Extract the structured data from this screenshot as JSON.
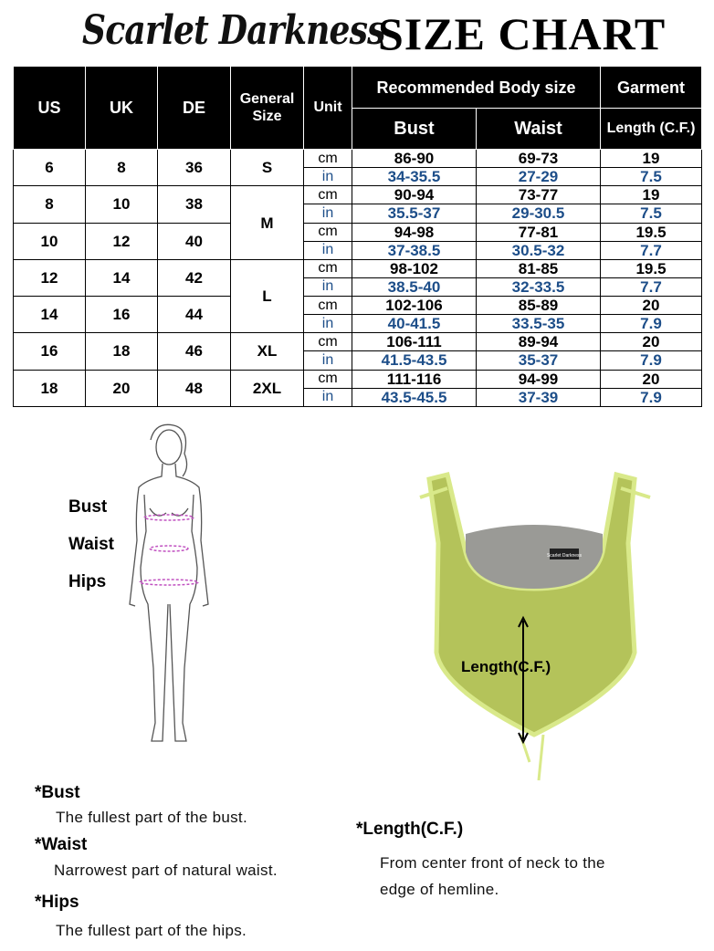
{
  "brand": "Scarlet Darkness",
  "title": "SIZE CHART",
  "table": {
    "headers": {
      "us": "US",
      "uk": "UK",
      "de": "DE",
      "general_size": "General Size",
      "unit": "Unit",
      "recommended": "Recommended Body size",
      "garment": "Garment",
      "bust": "Bust",
      "waist": "Waist",
      "length": "Length (C.F.)"
    },
    "size_groups": [
      {
        "label": "S",
        "rows": 1
      },
      {
        "label": "M",
        "rows": 2
      },
      {
        "label": "L",
        "rows": 2
      },
      {
        "label": "XL",
        "rows": 1
      },
      {
        "label": "2XL",
        "rows": 1
      }
    ],
    "rows": [
      {
        "us": "6",
        "uk": "8",
        "de": "36",
        "cm": {
          "unit": "cm",
          "bust": "86-90",
          "waist": "69-73",
          "length": "19"
        },
        "in": {
          "unit": "in",
          "bust": "34-35.5",
          "waist": "27-29",
          "length": "7.5"
        }
      },
      {
        "us": "8",
        "uk": "10",
        "de": "38",
        "cm": {
          "unit": "cm",
          "bust": "90-94",
          "waist": "73-77",
          "length": "19"
        },
        "in": {
          "unit": "in",
          "bust": "35.5-37",
          "waist": "29-30.5",
          "length": "7.5"
        }
      },
      {
        "us": "10",
        "uk": "12",
        "de": "40",
        "cm": {
          "unit": "cm",
          "bust": "94-98",
          "waist": "77-81",
          "length": "19.5"
        },
        "in": {
          "unit": "in",
          "bust": "37-38.5",
          "waist": "30.5-32",
          "length": "7.7"
        }
      },
      {
        "us": "12",
        "uk": "14",
        "de": "42",
        "cm": {
          "unit": "cm",
          "bust": "98-102",
          "waist": "81-85",
          "length": "19.5"
        },
        "in": {
          "unit": "in",
          "bust": "38.5-40",
          "waist": "32-33.5",
          "length": "7.7"
        }
      },
      {
        "us": "14",
        "uk": "16",
        "de": "44",
        "cm": {
          "unit": "cm",
          "bust": "102-106",
          "waist": "85-89",
          "length": "20"
        },
        "in": {
          "unit": "in",
          "bust": "40-41.5",
          "waist": "33.5-35",
          "length": "7.9"
        }
      },
      {
        "us": "16",
        "uk": "18",
        "de": "46",
        "cm": {
          "unit": "cm",
          "bust": "106-111",
          "waist": "89-94",
          "length": "20"
        },
        "in": {
          "unit": "in",
          "bust": "41.5-43.5",
          "waist": "35-37",
          "length": "7.9"
        }
      },
      {
        "us": "18",
        "uk": "20",
        "de": "48",
        "cm": {
          "unit": "cm",
          "bust": "111-116",
          "waist": "94-99",
          "length": "20"
        },
        "in": {
          "unit": "in",
          "bust": "43.5-45.5",
          "waist": "37-39",
          "length": "7.9"
        }
      }
    ]
  },
  "figure": {
    "bust": "Bust",
    "waist": "Waist",
    "hips": "Hips"
  },
  "garment": {
    "length_label": "Length(C.F.)",
    "tag": "Scarlet Darkness"
  },
  "colors": {
    "inch_text": "#1d4e89",
    "garment": "#b4c35a",
    "measure_line": "#c050c0"
  },
  "notes": {
    "bust_title": "*Bust",
    "bust_text": "The fullest part of the bust.",
    "waist_title": "*Waist",
    "waist_text": "Narrowest part of natural waist.",
    "hips_title": "*Hips",
    "hips_text": "The fullest part of the hips.",
    "length_title": "*Length(C.F.)",
    "length_text_1": "From center front of neck to the",
    "length_text_2": "edge of hemline."
  }
}
